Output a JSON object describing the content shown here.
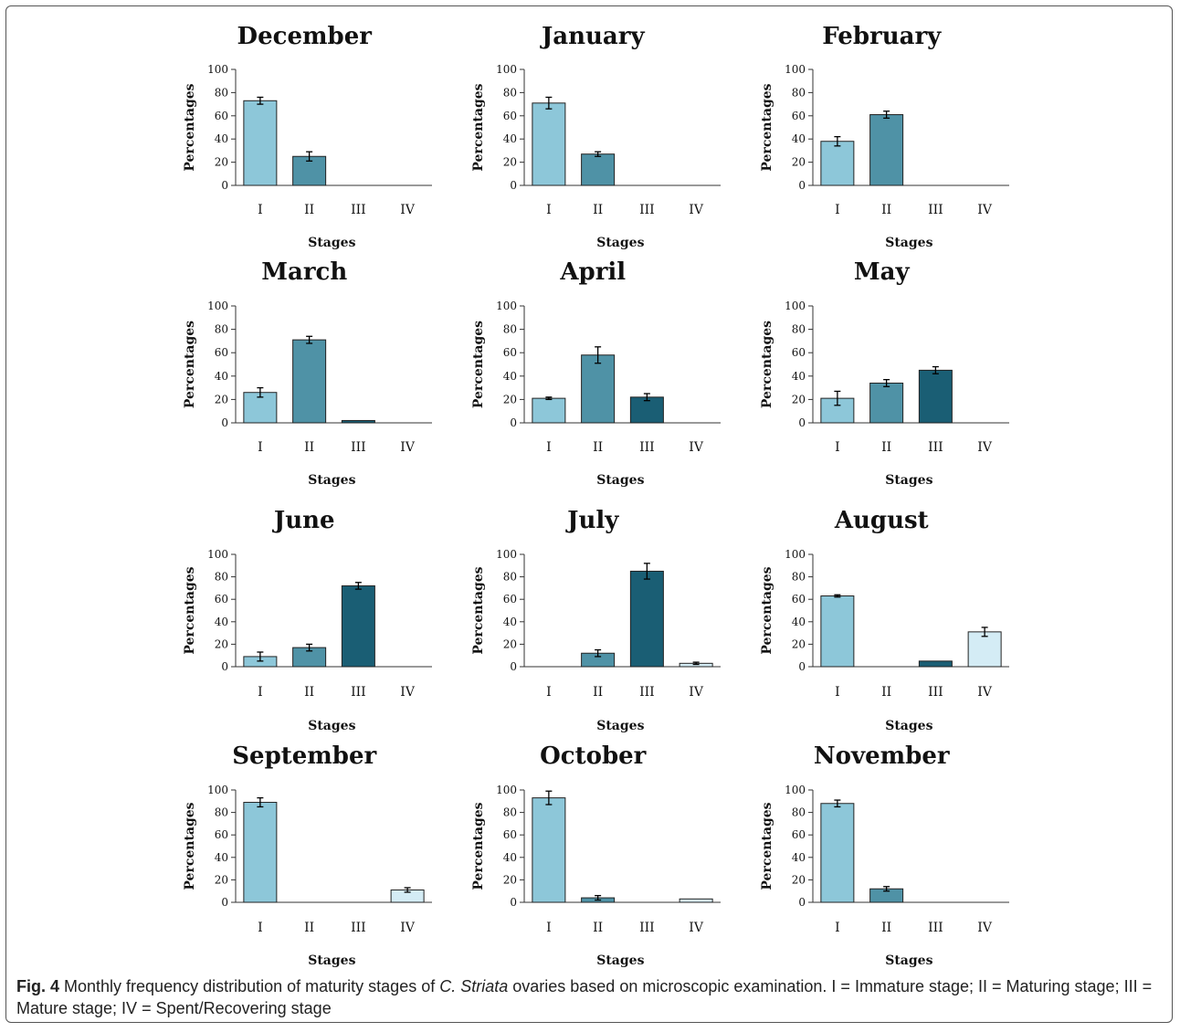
{
  "chart_data": [
    {
      "type": "bar",
      "title": "December",
      "categories": [
        "I",
        "II",
        "III",
        "IV"
      ],
      "values": [
        73,
        25,
        0,
        0
      ],
      "errors": [
        3,
        4,
        0,
        0
      ],
      "xlabel": "Stages",
      "ylabel": "Percentages",
      "ylim": [
        0,
        100
      ],
      "yticks": [
        "0",
        "20",
        "40",
        "60",
        "80",
        "100"
      ]
    },
    {
      "type": "bar",
      "title": "January",
      "categories": [
        "I",
        "II",
        "III",
        "IV"
      ],
      "values": [
        71,
        27,
        0,
        0
      ],
      "errors": [
        5,
        2,
        0,
        0
      ],
      "xlabel": "Stages",
      "ylabel": "Percentages",
      "ylim": [
        0,
        100
      ],
      "yticks": [
        "0",
        "20",
        "40",
        "60",
        "80",
        "100"
      ]
    },
    {
      "type": "bar",
      "title": "February",
      "categories": [
        "I",
        "II",
        "III",
        "IV"
      ],
      "values": [
        38,
        61,
        0,
        0
      ],
      "errors": [
        4,
        3,
        0,
        0
      ],
      "xlabel": "Stages",
      "ylabel": "Percentages",
      "ylim": [
        0,
        100
      ],
      "yticks": [
        "0",
        "20",
        "40",
        "60",
        "80",
        "100"
      ]
    },
    {
      "type": "bar",
      "title": "March",
      "categories": [
        "I",
        "II",
        "III",
        "IV"
      ],
      "values": [
        26,
        71,
        2,
        0
      ],
      "errors": [
        4,
        3,
        0,
        0
      ],
      "xlabel": "Stages",
      "ylabel": "Percentages",
      "ylim": [
        0,
        100
      ],
      "yticks": [
        "0",
        "20",
        "40",
        "60",
        "80",
        "100"
      ]
    },
    {
      "type": "bar",
      "title": "April",
      "categories": [
        "I",
        "II",
        "III",
        "IV"
      ],
      "values": [
        21,
        58,
        22,
        0
      ],
      "errors": [
        1,
        7,
        3,
        0
      ],
      "xlabel": "Stages",
      "ylabel": "Percentages",
      "ylim": [
        0,
        100
      ],
      "yticks": [
        "0",
        "20",
        "40",
        "60",
        "80",
        "100"
      ]
    },
    {
      "type": "bar",
      "title": "May",
      "categories": [
        "I",
        "II",
        "III",
        "IV"
      ],
      "values": [
        21,
        34,
        45,
        0
      ],
      "errors": [
        6,
        3,
        3,
        0
      ],
      "xlabel": "Stages",
      "ylabel": "Percentages",
      "ylim": [
        0,
        100
      ],
      "yticks": [
        "0",
        "20",
        "40",
        "60",
        "80",
        "100"
      ]
    },
    {
      "type": "bar",
      "title": "June",
      "categories": [
        "I",
        "II",
        "III",
        "IV"
      ],
      "values": [
        9,
        17,
        72,
        0
      ],
      "errors": [
        4,
        3,
        3,
        0
      ],
      "xlabel": "Stages",
      "ylabel": "Percentages",
      "ylim": [
        0,
        100
      ],
      "yticks": [
        "0",
        "20",
        "40",
        "60",
        "80",
        "100"
      ]
    },
    {
      "type": "bar",
      "title": "July",
      "categories": [
        "I",
        "II",
        "III",
        "IV"
      ],
      "values": [
        0,
        12,
        85,
        3
      ],
      "errors": [
        0,
        3,
        7,
        1
      ],
      "xlabel": "Stages",
      "ylabel": "Percentages",
      "ylim": [
        0,
        100
      ],
      "yticks": [
        "0",
        "20",
        "40",
        "60",
        "80",
        "100"
      ]
    },
    {
      "type": "bar",
      "title": "August",
      "categories": [
        "I",
        "II",
        "III",
        "IV"
      ],
      "values": [
        63,
        0,
        5,
        31
      ],
      "errors": [
        1,
        0,
        0,
        4
      ],
      "xlabel": "Stages",
      "ylabel": "Percentages",
      "ylim": [
        0,
        100
      ],
      "yticks": [
        "0",
        "20",
        "40",
        "60",
        "80",
        "100"
      ]
    },
    {
      "type": "bar",
      "title": "September",
      "categories": [
        "I",
        "II",
        "III",
        "IV"
      ],
      "values": [
        89,
        0,
        0,
        11
      ],
      "errors": [
        4,
        0,
        0,
        2
      ],
      "xlabel": "Stages",
      "ylabel": "Percentages",
      "ylim": [
        0,
        100
      ],
      "yticks": [
        "0",
        "20",
        "40",
        "60",
        "80",
        "100"
      ]
    },
    {
      "type": "bar",
      "title": "October",
      "categories": [
        "I",
        "II",
        "III",
        "IV"
      ],
      "values": [
        93,
        4,
        0,
        3
      ],
      "errors": [
        6,
        2,
        0,
        0
      ],
      "xlabel": "Stages",
      "ylabel": "Percentages",
      "ylim": [
        0,
        100
      ],
      "yticks": [
        "0",
        "20",
        "40",
        "60",
        "80",
        "100"
      ]
    },
    {
      "type": "bar",
      "title": "November",
      "categories": [
        "I",
        "II",
        "III",
        "IV"
      ],
      "values": [
        88,
        12,
        0,
        0
      ],
      "errors": [
        3,
        2,
        0,
        0
      ],
      "xlabel": "Stages",
      "ylabel": "Percentages",
      "ylim": [
        0,
        100
      ],
      "yticks": [
        "0",
        "20",
        "40",
        "60",
        "80",
        "100"
      ]
    }
  ],
  "colors": {
    "stage_I": "#8dc7d9",
    "stage_II": "#4f92a6",
    "stage_III": "#1a5e74",
    "stage_IV": "#d4ecf5",
    "bar_edge": "#222222",
    "axis": "#333333"
  },
  "caption": {
    "label": "Fig. 4",
    "text_before": " Monthly frequency distribution of maturity stages of ",
    "species": "C. Striata",
    "text_after": " ovaries based on microscopic examination. I = Immature stage; II = Maturing stage; III = Mature stage; IV = Spent/Recovering stage"
  }
}
